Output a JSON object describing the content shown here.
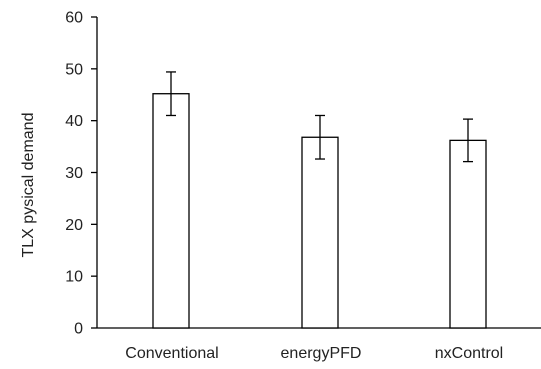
{
  "chart_data": {
    "type": "bar",
    "categories": [
      "Conventional",
      "energyPFD",
      "nxControl"
    ],
    "values": [
      45.2,
      36.8,
      36.2
    ],
    "error": [
      4.2,
      4.2,
      4.1
    ],
    "xlabel": "",
    "ylabel": "TLX pysical demand",
    "ylim": [
      0,
      60
    ],
    "yticks": [
      "0",
      "10",
      "20",
      "30",
      "40",
      "50",
      "60"
    ],
    "grid": false,
    "colors": {
      "bar_fill": "#ffffff",
      "bar_stroke": "#000000",
      "axis": "#000000"
    }
  }
}
